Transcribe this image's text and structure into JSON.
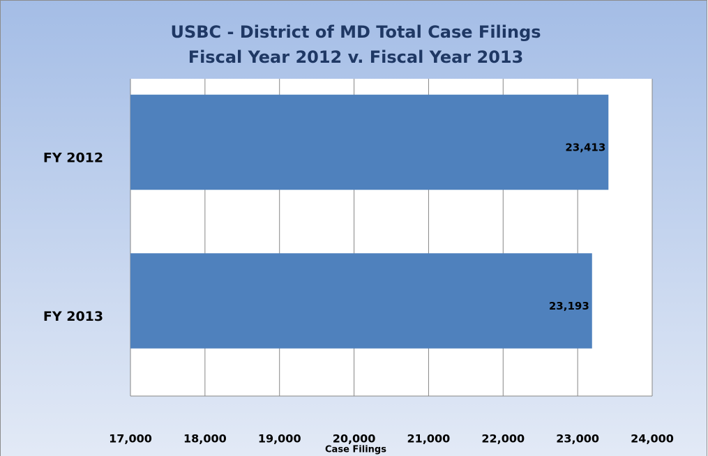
{
  "chart_data": {
    "type": "barh",
    "title": "USBC - District of MD Total Case Filings",
    "subtitle": "Fiscal Year 2012 v. Fiscal Year 2013",
    "xlabel": "Case Filings",
    "categories": [
      "FY 2012",
      "FY 2013"
    ],
    "values": [
      23413,
      23193
    ],
    "value_labels": [
      "23,413",
      "23,193"
    ],
    "color": "#4f81bd",
    "xlim": [
      17000,
      24000
    ],
    "xticks": [
      {
        "value": 17000,
        "label": "17,000"
      },
      {
        "value": 18000,
        "label": "18,000"
      },
      {
        "value": 19000,
        "label": "19,000"
      },
      {
        "value": 20000,
        "label": "20,000"
      },
      {
        "value": 21000,
        "label": "21,000"
      },
      {
        "value": 22000,
        "label": "22,000"
      },
      {
        "value": 23000,
        "label": "23,000"
      },
      {
        "value": 24000,
        "label": "24,000"
      }
    ],
    "grid": true
  }
}
